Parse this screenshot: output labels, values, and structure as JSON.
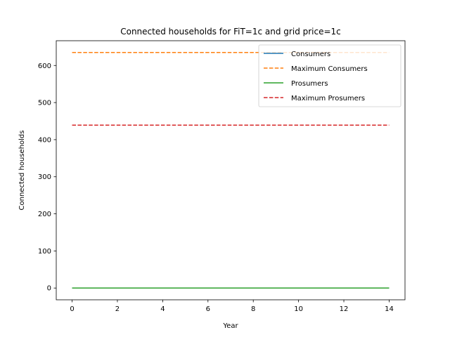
{
  "chart_data": {
    "type": "line",
    "title": "Connected households for FiT=1c and grid price=1c",
    "xlabel": "Year",
    "ylabel": "Connected households",
    "xlim": [
      -0.7,
      14.7
    ],
    "ylim": [
      -31.75,
      666.75
    ],
    "xticks": [
      0,
      2,
      4,
      6,
      8,
      10,
      12,
      14
    ],
    "yticks": [
      0,
      100,
      200,
      300,
      400,
      500,
      600
    ],
    "grid": false,
    "legend_position": "top-right",
    "x": [
      0,
      1,
      2,
      3,
      4,
      5,
      6,
      7,
      8,
      9,
      10,
      11,
      12,
      13,
      14
    ],
    "series": [
      {
        "name": "Consumers",
        "color": "#1f77b4",
        "style": "solid",
        "values": [
          0,
          0,
          0,
          0,
          0,
          0,
          0,
          0,
          0,
          0,
          0,
          0,
          0,
          0,
          0
        ]
      },
      {
        "name": "Maximum Consumers",
        "color": "#ff7f0e",
        "style": "dashed",
        "values": [
          635,
          635,
          635,
          635,
          635,
          635,
          635,
          635,
          635,
          635,
          635,
          635,
          635,
          635,
          635
        ]
      },
      {
        "name": "Prosumers",
        "color": "#2ca02c",
        "style": "solid",
        "values": [
          0,
          0,
          0,
          0,
          0,
          0,
          0,
          0,
          0,
          0,
          0,
          0,
          0,
          0,
          0
        ]
      },
      {
        "name": "Maximum Prosumers",
        "color": "#d62728",
        "style": "dashed",
        "values": [
          439,
          439,
          439,
          439,
          439,
          439,
          439,
          439,
          439,
          439,
          439,
          439,
          439,
          439,
          439
        ]
      }
    ]
  }
}
